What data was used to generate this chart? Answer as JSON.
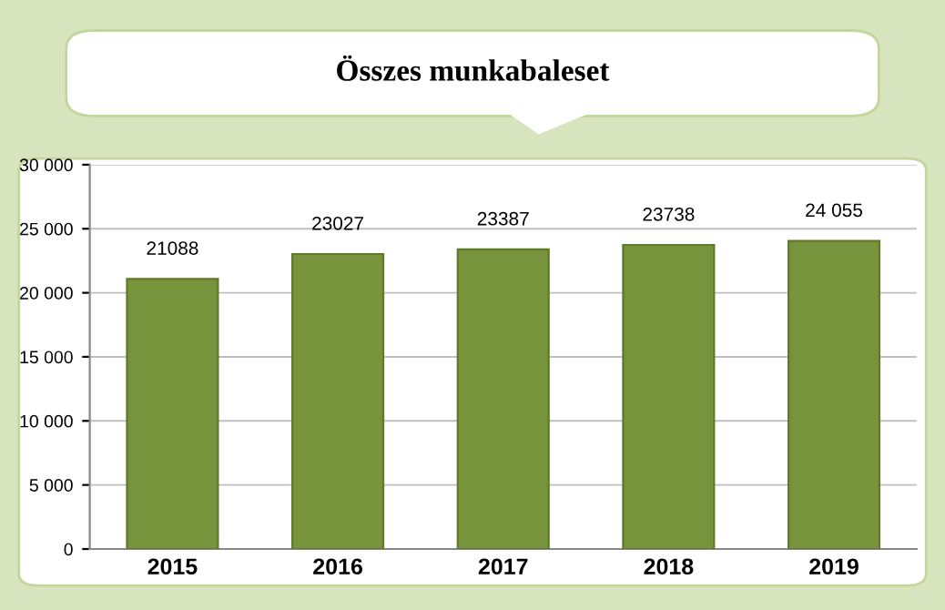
{
  "chart_data": {
    "type": "bar",
    "title": "Összes munkabaleset",
    "categories": [
      "2015",
      "2016",
      "2017",
      "2018",
      "2019"
    ],
    "values": [
      21088,
      23027,
      23387,
      23738,
      24055
    ],
    "value_labels": [
      "21088",
      "23027",
      "23387",
      "23738",
      "24 055"
    ],
    "color": "#77933c",
    "ylim": [
      0,
      30000
    ],
    "yticks": [
      0,
      {
        "value": 5000,
        "label": "5 000"
      },
      {
        "value": 10000,
        "label": "10 000"
      },
      {
        "value": 15000,
        "label": "15 000"
      },
      {
        "value": 20000,
        "label": "20 000"
      },
      {
        "value": 25000,
        "label": "25 000"
      },
      {
        "value": 30000,
        "label": "30 000"
      }
    ],
    "grid": "y"
  }
}
